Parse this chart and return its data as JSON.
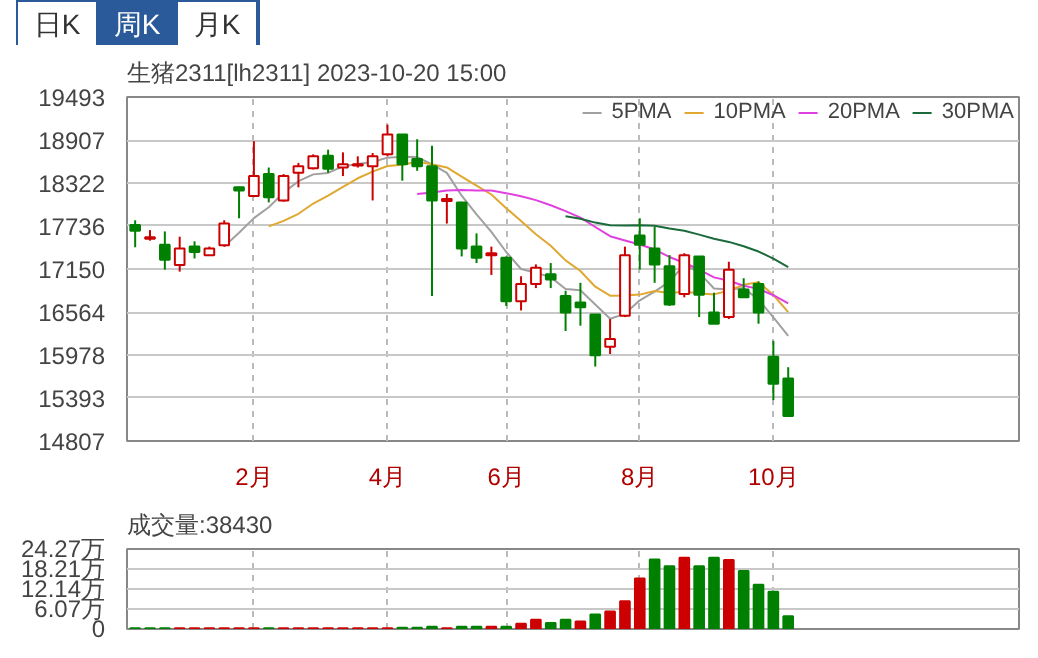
{
  "chart_data": [
    {
      "type": "candlestick",
      "title": "生猪2311[lh2311] 2023-10-20 15:00",
      "annotations": [
        "日K",
        "周K",
        "月K"
      ],
      "categories": [
        null,
        null,
        null,
        null,
        null,
        null,
        null,
        null,
        "2月",
        null,
        null,
        null,
        null,
        null,
        null,
        null,
        null,
        "4月",
        null,
        null,
        null,
        null,
        null,
        null,
        null,
        "6月",
        null,
        null,
        null,
        null,
        null,
        null,
        null,
        null,
        "8月",
        null,
        null,
        null,
        null,
        null,
        null,
        null,
        null,
        "10月",
        null
      ],
      "ohlc": [
        [
          17750,
          17814,
          17446,
          17671
        ],
        [
          17563,
          17680,
          17536,
          17581
        ],
        [
          17482,
          17662,
          17141,
          17276
        ],
        [
          17204,
          17590,
          17114,
          17428
        ],
        [
          17455,
          17527,
          17294,
          17383
        ],
        [
          17339,
          17455,
          17339,
          17428
        ],
        [
          17473,
          17814,
          17455,
          17769
        ],
        [
          18263,
          18272,
          17841,
          18218
        ],
        [
          18146,
          18892,
          18129,
          18416
        ],
        [
          18443,
          18532,
          18057,
          18129
        ],
        [
          18084,
          18443,
          18066,
          18416
        ],
        [
          18461,
          18595,
          18263,
          18550
        ],
        [
          18524,
          18712,
          18506,
          18685
        ],
        [
          18694,
          18775,
          18461,
          18514
        ],
        [
          18532,
          18739,
          18416,
          18577
        ],
        [
          18559,
          18685,
          18532,
          18577
        ],
        [
          18550,
          18730,
          18084,
          18685
        ],
        [
          18712,
          19116,
          18685,
          18981
        ],
        [
          18981,
          18981,
          18353,
          18577
        ],
        [
          18649,
          18918,
          18488,
          18550
        ],
        [
          18550,
          18829,
          16782,
          18084
        ],
        [
          18075,
          18173,
          17769,
          18102
        ],
        [
          18057,
          18057,
          17321,
          17428
        ],
        [
          17455,
          17635,
          17231,
          17303
        ],
        [
          17339,
          17455,
          17069,
          17365
        ],
        [
          17303,
          17321,
          16647,
          16710
        ],
        [
          16710,
          17051,
          16585,
          16944
        ],
        [
          16944,
          17213,
          16890,
          17168
        ],
        [
          17078,
          17231,
          16890,
          17006
        ],
        [
          16782,
          16854,
          16306,
          16557
        ],
        [
          16692,
          16962,
          16378,
          16629
        ],
        [
          16531,
          16531,
          15821,
          15974
        ],
        [
          16091,
          16468,
          15992,
          16198
        ],
        [
          16513,
          17455,
          16495,
          17339
        ],
        [
          17608,
          17841,
          17141,
          17482
        ],
        [
          17428,
          17725,
          16962,
          17213
        ],
        [
          17186,
          17339,
          16647,
          16665
        ],
        [
          16809,
          17365,
          16764,
          17339
        ],
        [
          17321,
          17321,
          16495,
          16800
        ],
        [
          16557,
          16827,
          16405,
          16405
        ],
        [
          16495,
          17249,
          16468,
          17141
        ],
        [
          16872,
          17024,
          16764,
          16764
        ],
        [
          16944,
          16980,
          16405,
          16557
        ],
        [
          15956,
          16171,
          15364,
          15588
        ],
        [
          15660,
          15812,
          15148,
          15148
        ]
      ],
      "series": [
        {
          "name": "5PMA",
          "type": "line",
          "color": "#a0a0a0",
          "values": [
            null,
            null,
            null,
            null,
            null,
            null,
            17457,
            17645,
            17843,
            17992,
            18190,
            18346,
            18439,
            18459,
            18548,
            18581,
            18608,
            18667,
            18679,
            18674,
            18575,
            18459,
            18148,
            17893,
            17656,
            17382,
            17150,
            17098,
            17039,
            16877,
            16861,
            16667,
            16473,
            16539,
            16724,
            16841,
            16979,
            17208,
            17100,
            16884,
            16870,
            16890,
            16733,
            16491,
            16240
          ]
        },
        {
          "name": "10PMA",
          "type": "line",
          "color": "#e0a830",
          "values": [
            null,
            null,
            null,
            null,
            null,
            null,
            null,
            null,
            null,
            17730,
            17805,
            17902,
            18042,
            18151,
            18270,
            18386,
            18477,
            18553,
            18569,
            18611,
            18578,
            18534,
            18408,
            18286,
            18165,
            17979,
            17805,
            17623,
            17466,
            17267,
            17122,
            16909,
            16786,
            16789,
            16801,
            16851,
            16823,
            16841,
            16820,
            16804,
            16856,
            16935,
            16971,
            16796,
            16562
          ]
        },
        {
          "name": "20PMA",
          "type": "line",
          "color": "#e040e0",
          "values": [
            null,
            null,
            null,
            null,
            null,
            null,
            null,
            null,
            null,
            null,
            null,
            null,
            null,
            null,
            null,
            null,
            null,
            null,
            null,
            18171,
            18192,
            18218,
            18225,
            18219,
            18218,
            18183,
            18141,
            18088,
            18018,
            17939,
            17850,
            17722,
            17597,
            17538,
            17483,
            17415,
            17314,
            17232,
            17143,
            17036,
            16989,
            16922,
            16879,
            16793,
            16682
          ]
        },
        {
          "name": "30PMA",
          "type": "line",
          "color": "#1a6a3a",
          "values": [
            null,
            null,
            null,
            null,
            null,
            null,
            null,
            null,
            null,
            null,
            null,
            null,
            null,
            null,
            null,
            null,
            null,
            null,
            null,
            null,
            null,
            null,
            null,
            null,
            null,
            null,
            null,
            null,
            null,
            17869,
            17835,
            17782,
            17745,
            17742,
            17745,
            17739,
            17702,
            17672,
            17618,
            17561,
            17519,
            17459,
            17388,
            17290,
            17176
          ]
        }
      ],
      "ylim": [
        14807,
        19493
      ],
      "yticks": [
        14807,
        15393,
        15978,
        16564,
        17150,
        17736,
        18322,
        18907,
        19493
      ],
      "grid": true,
      "legend": "top right"
    },
    {
      "type": "bar",
      "title": "成交量:38430",
      "categories": [
        null,
        null,
        null,
        null,
        null,
        null,
        null,
        null,
        null,
        null,
        null,
        null,
        null,
        null,
        null,
        null,
        null,
        null,
        null,
        null,
        null,
        null,
        null,
        null,
        null,
        null,
        null,
        null,
        null,
        null,
        null,
        null,
        null,
        null,
        null,
        null,
        null,
        null,
        null,
        null,
        null,
        null,
        null,
        null,
        null
      ],
      "values": [
        0.2,
        0.2,
        0.2,
        0.2,
        0.2,
        0.2,
        0.2,
        0.2,
        0.2,
        0.2,
        0.2,
        0.2,
        0.2,
        0.2,
        0.2,
        0.2,
        0.2,
        0.2,
        0.4,
        0.4,
        0.7,
        0.2,
        0.7,
        0.7,
        0.7,
        0.7,
        1.6,
        2.8,
        1.8,
        2.8,
        2.3,
        4.4,
        5.3,
        8.4,
        15.3,
        21.1,
        19,
        21.6,
        19,
        21.6,
        20.9,
        17.6,
        13.4,
        11.3,
        3.843
      ],
      "colors": [
        "#008000",
        "#008000",
        "#008000",
        "#cc0000",
        "#cc0000",
        "#cc0000",
        "#cc0000",
        "#cc0000",
        "#cc0000",
        "#008000",
        "#cc0000",
        "#cc0000",
        "#cc0000",
        "#cc0000",
        "#cc0000",
        "#cc0000",
        "#cc0000",
        "#cc0000",
        "#008000",
        "#008000",
        "#008000",
        "#cc0000",
        "#008000",
        "#008000",
        "#cc0000",
        "#008000",
        "#cc0000",
        "#cc0000",
        "#008000",
        "#008000",
        "#cc0000",
        "#008000",
        "#cc0000",
        "#cc0000",
        "#cc0000",
        "#008000",
        "#008000",
        "#cc0000",
        "#008000",
        "#008000",
        "#cc0000",
        "#008000",
        "#008000",
        "#008000",
        "#008000"
      ],
      "ylim": [
        0,
        24.27
      ],
      "yticks": [
        0,
        {
          "value": 6.07,
          "label": "6.07万"
        },
        {
          "value": 12.14,
          "label": "12.14万"
        },
        {
          "value": 18.21,
          "label": "18.21万"
        },
        {
          "value": 24.27,
          "label": "24.27万"
        }
      ],
      "grid": true
    }
  ]
}
